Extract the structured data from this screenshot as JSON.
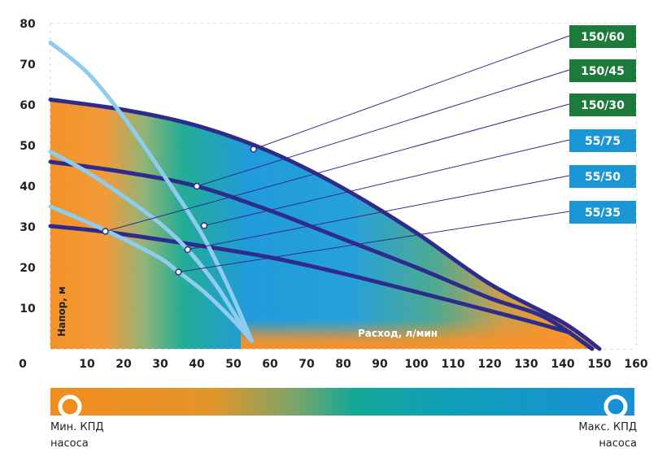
{
  "chart_data": {
    "type": "line",
    "xlabel": "Расход, л/мин",
    "ylabel": "Напор, м",
    "xlim": [
      0,
      160
    ],
    "ylim": [
      0,
      80
    ],
    "x_ticks": [
      0,
      10,
      20,
      30,
      40,
      50,
      60,
      70,
      80,
      90,
      100,
      110,
      120,
      130,
      140,
      150,
      160
    ],
    "y_ticks": [
      10,
      20,
      30,
      40,
      50,
      60,
      70,
      80
    ],
    "grid": true,
    "series": [
      {
        "name": "150/60",
        "color": "#2e2c8a",
        "x": [
          0,
          20,
          40,
          60,
          80,
          100,
          120,
          140,
          150
        ],
        "y": [
          61.3,
          58.8,
          54.9,
          48.5,
          39.5,
          28.5,
          16,
          6.5,
          0
        ],
        "marker": [
          55.5,
          49.1
        ]
      },
      {
        "name": "150/45",
        "color": "#2e2c8a",
        "x": [
          0,
          20,
          40,
          60,
          80,
          100,
          120,
          135,
          148
        ],
        "y": [
          46,
          43.5,
          40,
          34,
          27,
          20,
          12.5,
          7.8,
          0
        ],
        "marker": [
          40,
          40
        ]
      },
      {
        "name": "150/30",
        "color": "#2e2c8a",
        "x": [
          0,
          15,
          40,
          60,
          80,
          100,
          128,
          142
        ],
        "y": [
          30.2,
          28.8,
          25.5,
          22.5,
          18.5,
          14,
          7.5,
          4
        ],
        "marker": [
          15,
          28.9
        ]
      },
      {
        "name": "55/75",
        "color": "#8ecdf0",
        "x": [
          0,
          10,
          20,
          30,
          40,
          45,
          50,
          55
        ],
        "y": [
          75.3,
          68,
          57,
          44,
          30.3,
          22,
          12.5,
          2
        ],
        "marker": [
          42,
          30.3
        ]
      },
      {
        "name": "55/50",
        "color": "#8ecdf0",
        "x": [
          0,
          10,
          20,
          30,
          37.5,
          45,
          50,
          55
        ],
        "y": [
          48.5,
          43.5,
          37.5,
          30.8,
          24.4,
          16,
          9,
          2
        ],
        "marker": [
          37.5,
          24.4
        ]
      },
      {
        "name": "55/35",
        "color": "#8ecdf0",
        "x": [
          0,
          10,
          20,
          30,
          35,
          42,
          50,
          55
        ],
        "y": [
          35,
          31.2,
          27,
          22.3,
          18.9,
          14,
          7,
          2
        ],
        "marker": [
          35,
          18.9
        ]
      }
    ],
    "legend": {
      "placement": "right",
      "entries": [
        {
          "label": "150/60",
          "color": "#1c7a3a"
        },
        {
          "label": "150/45",
          "color": "#1c7a3a"
        },
        {
          "label": "150/30",
          "color": "#1c7a3a"
        },
        {
          "label": "55/75",
          "color": "#1a96d4"
        },
        {
          "label": "55/50",
          "color": "#1a96d4"
        },
        {
          "label": "55/35",
          "color": "#1a96d4"
        }
      ]
    }
  },
  "efficiency_scale": {
    "min_label": "Мин. КПД",
    "min_sub": "насоса",
    "max_label": "Макс. КПД",
    "max_sub": "насоса",
    "min_color": "#f08a1c",
    "max_color": "#1a96d4"
  }
}
